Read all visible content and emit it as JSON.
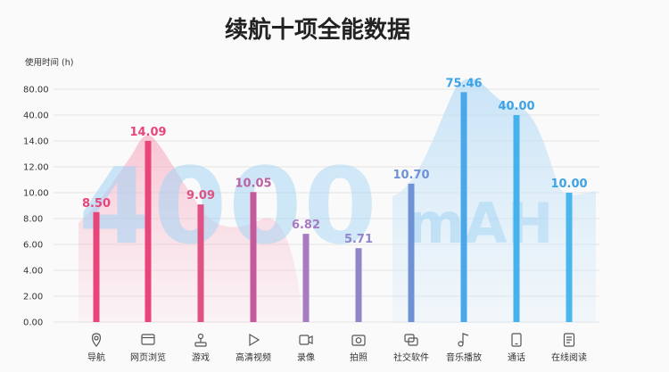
{
  "chart_data": {
    "type": "bar",
    "title": "续航十项全能数据",
    "ylabel": "使用时间 (h)",
    "watermark": {
      "number": "4000",
      "unit": "mAH"
    },
    "y_tick_labels": [
      "0.00",
      "2.00",
      "4.00",
      "6.00",
      "8.00",
      "10.00",
      "12.00",
      "14.00",
      "40.00",
      "80.00"
    ],
    "categories": [
      "导航",
      "网页浏览",
      "游戏",
      "高清视频",
      "录像",
      "拍照",
      "社交软件",
      "音乐播放",
      "通话",
      "在线阅读"
    ],
    "values": [
      8.5,
      14.09,
      9.09,
      10.05,
      6.82,
      5.71,
      10.7,
      75.46,
      40.0,
      10.0
    ],
    "value_labels": [
      "8.50",
      "14.09",
      "9.09",
      "10.05",
      "6.82",
      "5.71",
      "10.70",
      "75.46",
      "40.00",
      "10.00"
    ],
    "icons": [
      "location-pin-icon",
      "browser-window-icon",
      "joystick-icon",
      "play-icon",
      "video-camera-icon",
      "camera-icon",
      "chat-bubbles-icon",
      "music-note-icon",
      "phone-icon",
      "document-icon"
    ],
    "colors": [
      "#e8457a",
      "#e8457a",
      "#e05283",
      "#c45a9a",
      "#a67bc2",
      "#8f86cc",
      "#6f92d6",
      "#4aa8ea",
      "#45b2ee",
      "#4bb6ec"
    ],
    "label_colors": [
      "#e8457a",
      "#e8457a",
      "#e05283",
      "#b963a5",
      "#a67bc2",
      "#8f86cc",
      "#6f92d6",
      "#3ca3e6",
      "#3ca3e6",
      "#3ca3e6"
    ],
    "grid": true
  }
}
